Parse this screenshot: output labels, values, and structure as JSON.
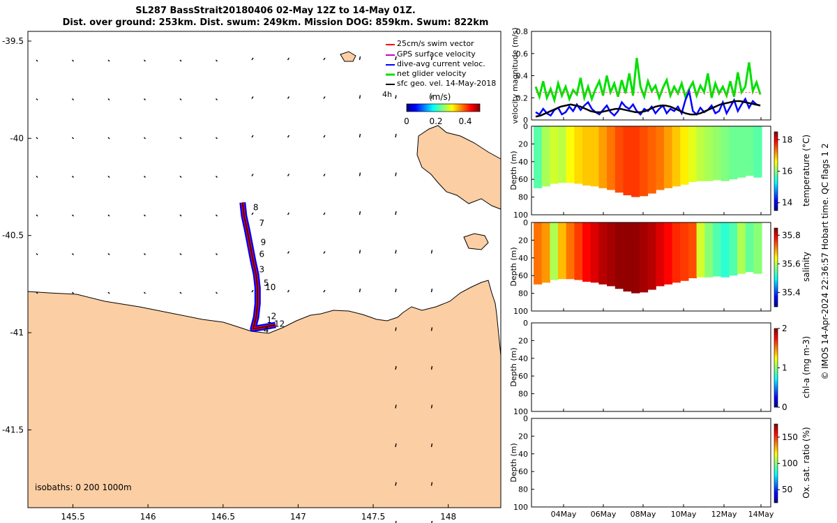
{
  "titles": {
    "line1": "SL287 BassStrait20180406 02-May 12Z to 14-May 01Z.",
    "line2": "Dist. over ground: 253km. Dist. swum: 249km. Mission DOG: 859km. Swum: 822km"
  },
  "footer_note": "© IMOS 14-Apr-2024 22:36:57 Hobart time. QC flags 1  2",
  "colors": {
    "land": "#fbcea4",
    "track_red": "#ff0000",
    "dive_blue": "#0000ff",
    "net_green": "#00e000",
    "geo_black": "#000000",
    "gps_magenta": "#cc00cc"
  },
  "chart_data": [
    {
      "type": "map",
      "xlim": [
        145.2,
        148.35
      ],
      "ylim": [
        -41.9,
        -39.45
      ],
      "x_ticks": [
        "145.5",
        "146",
        "146.5",
        "147",
        "147.5",
        "148"
      ],
      "x_tick_values": [
        145.5,
        146,
        146.5,
        147,
        147.5,
        148
      ],
      "y_ticks": [
        "-39.5",
        "-40",
        "-40.5",
        "-41",
        "-41.5"
      ],
      "y_tick_values": [
        -39.5,
        -40,
        -40.5,
        -41,
        -41.5
      ],
      "legend": [
        {
          "label": "25cm/s swim vector",
          "color": "#ff0000"
        },
        {
          "label": "GPS surface velocity",
          "color": "#cc00cc"
        },
        {
          "label": "dive-avg current veloc.",
          "color": "#0000ff"
        },
        {
          "label": "net glider velocity",
          "color": "#00e000"
        },
        {
          "label": "sfc geo. vel. 14-May-2018",
          "color": "#000000"
        }
      ],
      "legend_extra": "4h",
      "colorbar": {
        "label": "(m/s)",
        "ticks": [
          "0",
          "0.2",
          "0.4"
        ],
        "range": [
          0,
          0.5
        ],
        "colormap": "jet"
      },
      "isobaths_label": "isobaths: 0   200  1000m",
      "track": [
        [
          146.63,
          -40.33
        ],
        [
          146.64,
          -40.4
        ],
        [
          146.66,
          -40.47
        ],
        [
          146.68,
          -40.55
        ],
        [
          146.7,
          -40.63
        ],
        [
          146.72,
          -40.7
        ],
        [
          146.73,
          -40.77
        ],
        [
          146.73,
          -40.85
        ],
        [
          146.72,
          -40.92
        ],
        [
          146.7,
          -40.98
        ],
        [
          146.78,
          -40.97
        ],
        [
          146.85,
          -40.96
        ]
      ],
      "day_labels": [
        {
          "text": "8",
          "lon": 146.7,
          "lat": -40.37
        },
        {
          "text": "7",
          "lon": 146.74,
          "lat": -40.45
        },
        {
          "text": "9",
          "lon": 146.75,
          "lat": -40.55
        },
        {
          "text": "6",
          "lon": 146.74,
          "lat": -40.61
        },
        {
          "text": "3",
          "lon": 146.74,
          "lat": -40.69
        },
        {
          "text": "5",
          "lon": 146.77,
          "lat": -40.76
        },
        {
          "text": "10",
          "lon": 146.78,
          "lat": -40.78
        },
        {
          "text": "2",
          "lon": 146.82,
          "lat": -40.93
        },
        {
          "text": "1",
          "lon": 146.79,
          "lat": -40.95
        },
        {
          "text": "12",
          "lon": 146.84,
          "lat": -40.97
        },
        {
          "text": "4",
          "lon": 146.77,
          "lat": -41.0
        }
      ]
    },
    {
      "type": "line",
      "ylabel": "velocity magnitude (m/s)",
      "ylim": [
        0,
        0.8
      ],
      "y_ticks": [
        0,
        0.2,
        0.4,
        0.6,
        0.8
      ],
      "series": [
        {
          "values": [
            0.3,
            0.21,
            0.35,
            0.2,
            0.28,
            0.18,
            0.33,
            0.22,
            0.3,
            0.19,
            0.27,
            0.23,
            0.38,
            0.2,
            0.3,
            0.19,
            0.28,
            0.35,
            0.22,
            0.4,
            0.25,
            0.33,
            0.21,
            0.36,
            0.24,
            0.42,
            0.22,
            0.56,
            0.3,
            0.21,
            0.35,
            0.26,
            0.31,
            0.2,
            0.29,
            0.36,
            0.22,
            0.3,
            0.24,
            0.33,
            0.21,
            0.28,
            0.34,
            0.22,
            0.31,
            0.25,
            0.42,
            0.2,
            0.33,
            0.24,
            0.3,
            0.22,
            0.35,
            0.21,
            0.43,
            0.25,
            0.3,
            0.52,
            0.26,
            0.34,
            0.23
          ]
        },
        {
          "values": [
            0.07,
            0.05,
            0.1,
            0.06,
            0.04,
            0.09,
            0.11,
            0.05,
            0.07,
            0.12,
            0.08,
            0.14,
            0.09,
            0.13,
            0.16,
            0.1,
            0.07,
            0.05,
            0.09,
            0.13,
            0.07,
            0.04,
            0.08,
            0.16,
            0.12,
            0.1,
            0.14,
            0.08,
            0.05,
            0.1,
            0.08,
            0.12,
            0.06,
            0.1,
            0.13,
            0.06,
            0.1,
            0.08,
            0.12,
            0.06,
            0.18,
            0.26,
            0.08,
            0.05,
            0.11,
            0.07,
            0.09,
            0.13,
            0.06,
            0.08,
            0.16,
            0.06,
            0.12,
            0.18,
            0.08,
            0.14,
            0.19,
            0.11,
            0.17,
            0.14,
            0.13
          ]
        },
        {
          "values": [
            0.03,
            0.04,
            0.06,
            0.08,
            0.1,
            0.12,
            0.13,
            0.14,
            0.13,
            0.12,
            0.1,
            0.08,
            0.07,
            0.07,
            0.08,
            0.09,
            0.1,
            0.1,
            0.09,
            0.08,
            0.07,
            0.07,
            0.08,
            0.1,
            0.12,
            0.13,
            0.13,
            0.12,
            0.1,
            0.08,
            0.06,
            0.05,
            0.05,
            0.06,
            0.08,
            0.1,
            0.12,
            0.14,
            0.15,
            0.16,
            0.17,
            0.17,
            0.16,
            0.15,
            0.14,
            0.13
          ]
        },
        {
          "values": [
            0.25,
            0.25,
            0.25,
            0.25,
            0.25,
            0.25,
            0.25,
            0.25,
            0.25,
            0.25,
            0.25
          ]
        }
      ]
    },
    {
      "type": "heatmap",
      "ylabel": "Depth (m)",
      "cbar_label": "temperature (°C)",
      "cbar_ticks": [
        "18",
        "16",
        "14"
      ],
      "cbar_range": [
        13.5,
        18.5
      ],
      "ylim": [
        100,
        0
      ],
      "y_ticks": [
        0,
        20,
        40,
        60,
        80,
        100
      ],
      "values": [
        15.8,
        16.2,
        16.4,
        16.3,
        16.6,
        16.8,
        16.9,
        16.9,
        17.1,
        17.3,
        17.5,
        17.6,
        17.6,
        17.5,
        17.4,
        17.3,
        17.1,
        16.9,
        16.7,
        16.5,
        16.3,
        16.2,
        16.1,
        16.0,
        15.9,
        15.9,
        15.9,
        15.8
      ],
      "bottom_depths": [
        70,
        68,
        65,
        64,
        64,
        65,
        67,
        68,
        70,
        72,
        75,
        78,
        80,
        79,
        76,
        72,
        70,
        68,
        66,
        63,
        62,
        62,
        61,
        62,
        60,
        58,
        56,
        58
      ]
    },
    {
      "type": "heatmap",
      "ylabel": "Depth (m)",
      "cbar_label": "salinity",
      "cbar_ticks": [
        "35.8",
        "35.6",
        "35.4"
      ],
      "cbar_range": [
        35.3,
        35.85
      ],
      "ylim": [
        100,
        0
      ],
      "y_ticks": [
        0,
        20,
        40,
        60,
        80,
        100
      ],
      "values": [
        35.72,
        35.7,
        35.6,
        35.68,
        35.72,
        35.75,
        35.78,
        35.8,
        35.82,
        35.83,
        35.84,
        35.84,
        35.84,
        35.83,
        35.82,
        35.8,
        35.78,
        35.76,
        35.75,
        35.74,
        35.62,
        35.58,
        35.55,
        35.53,
        35.55,
        35.6,
        35.56,
        35.58
      ],
      "bottom_depths": [
        70,
        68,
        65,
        64,
        64,
        65,
        67,
        68,
        70,
        72,
        75,
        78,
        80,
        79,
        76,
        72,
        70,
        68,
        66,
        63,
        62,
        62,
        61,
        62,
        60,
        58,
        56,
        58
      ]
    },
    {
      "type": "heatmap",
      "ylabel": "Depth (m)",
      "cbar_label": "chl-a (mg m-3)",
      "cbar_ticks": [
        "2",
        "1",
        "0"
      ],
      "cbar_range": [
        0,
        2
      ],
      "ylim": [
        100,
        0
      ],
      "y_ticks": [
        0,
        20,
        40,
        60,
        80,
        100
      ],
      "values": []
    },
    {
      "type": "heatmap",
      "ylabel": "Depth (m)",
      "cbar_label": "Ox. sat. ratio (%)",
      "cbar_ticks": [
        "150",
        "100",
        "50"
      ],
      "cbar_range": [
        25,
        175
      ],
      "ylim": [
        100,
        0
      ],
      "y_ticks": [
        0,
        20,
        40,
        60,
        80,
        100
      ],
      "x_ticks": [
        "04May",
        "06May",
        "08May",
        "10May",
        "12May",
        "14May"
      ],
      "values": []
    }
  ]
}
